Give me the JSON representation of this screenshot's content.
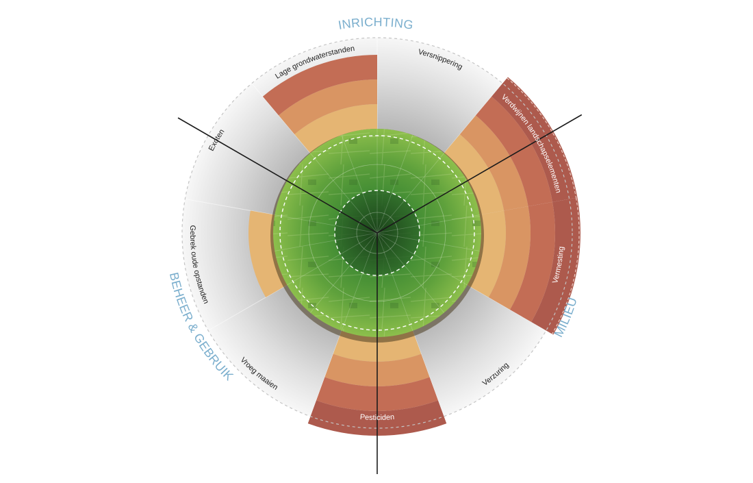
{
  "categories": {
    "inrichting": "INRICHTING",
    "milieu": "MILIEU",
    "beheer": "BEHEER & GEBRUIK"
  },
  "segments": [
    {
      "label": "Versnippering",
      "level": 0,
      "light": false
    },
    {
      "label": "Verdwijnen landschapselementen",
      "level": 5,
      "light": true
    },
    {
      "label": "Vermesting",
      "level": 5,
      "light": true
    },
    {
      "label": "Verzuring",
      "level": 0,
      "light": false
    },
    {
      "label": "Pesticiden",
      "level": 4,
      "light": true
    },
    {
      "label": "Vroeg maaien",
      "level": 0,
      "light": false
    },
    {
      "label": "Gebrek oude opstanden",
      "level": 1,
      "light": false
    },
    {
      "label": "Exoten",
      "level": 0,
      "light": false
    },
    {
      "label": "Lage grondwaterstanden",
      "level": 3,
      "light": false
    }
  ],
  "colors": {
    "accent": "#7aaecd",
    "ring_levels": [
      "#e5b573",
      "#d99563",
      "#c36d55",
      "#ad5a4d"
    ],
    "inner_green": "#5a9a3a",
    "core_green": "#2f6a2a"
  }
}
